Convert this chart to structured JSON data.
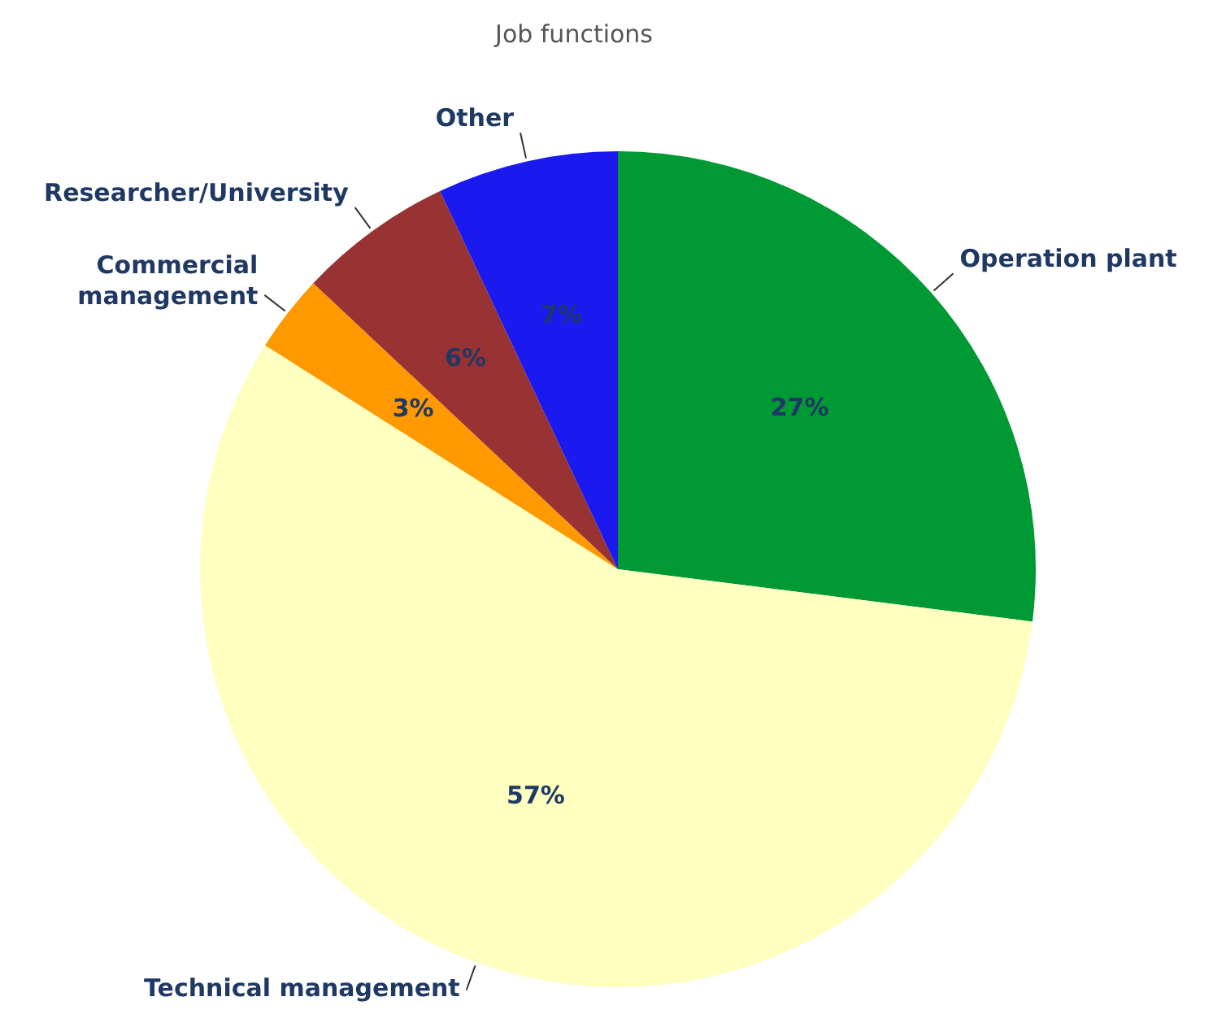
{
  "chart_data": {
    "type": "pie",
    "title": "Job functions",
    "categories": [
      "Operation plant",
      "Technical management",
      "Commercial management",
      "Researcher/University",
      "Other"
    ],
    "values": [
      27,
      57,
      3,
      6,
      7
    ],
    "colors": [
      "#009933",
      "#ffffc0",
      "#ff9900",
      "#993333",
      "#1a1aee"
    ],
    "value_labels": [
      "27%",
      "57%",
      "3%",
      "6%",
      "7%"
    ],
    "legend": false
  }
}
